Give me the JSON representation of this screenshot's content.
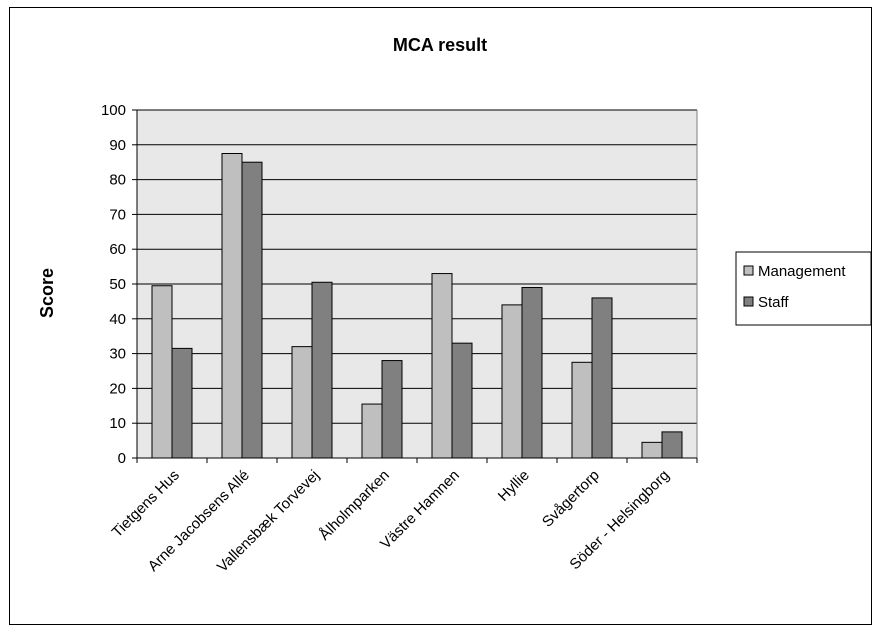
{
  "chart_data": {
    "type": "bar",
    "title": "MCA result",
    "xlabel": "",
    "ylabel": "Score",
    "ylim": [
      0,
      100
    ],
    "yticks": [
      0,
      10,
      20,
      30,
      40,
      50,
      60,
      70,
      80,
      90,
      100
    ],
    "categories": [
      "Tietgens Hus",
      "Arne Jacobsens Allé",
      "Vallensbæk Torvevej",
      "Ålholmparken",
      "Västre Hamnen",
      "Hyllie",
      "Svågertorp",
      "Söder - Helsingborg"
    ],
    "series": [
      {
        "name": "Management",
        "color": "#bfbfbf",
        "values": [
          49.5,
          87.5,
          32,
          15.5,
          53,
          44,
          27.5,
          4.5
        ]
      },
      {
        "name": "Staff",
        "color": "#808080",
        "values": [
          31.5,
          85,
          50.5,
          28,
          33,
          49,
          46,
          7.5
        ]
      }
    ],
    "plot_background": "#e8e8e8",
    "grid": true,
    "legend_position": "right"
  }
}
